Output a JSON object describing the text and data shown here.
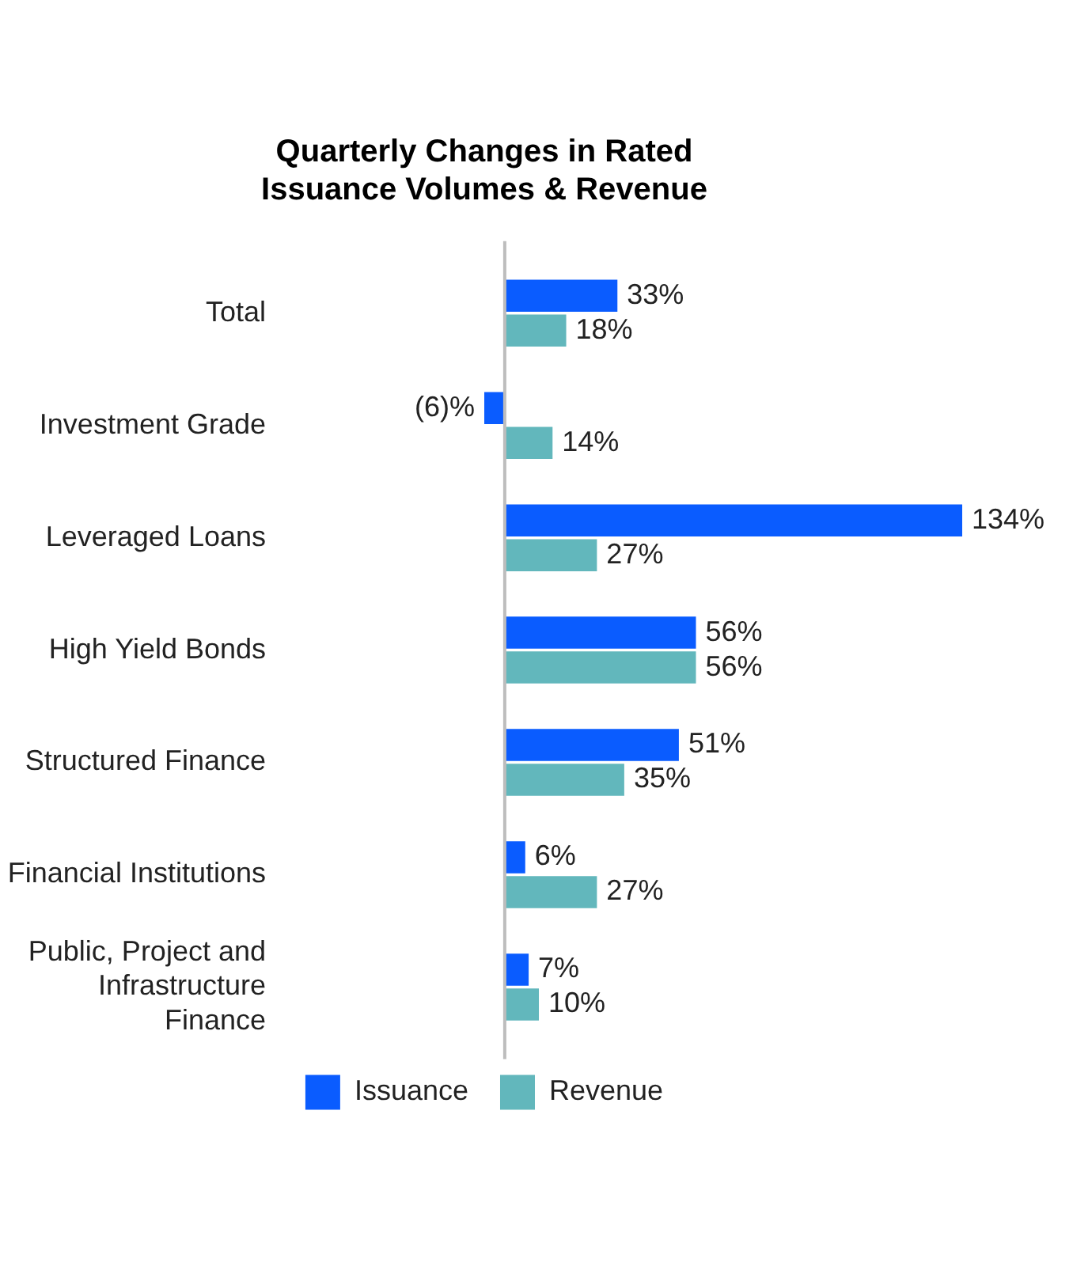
{
  "chart_data": {
    "type": "bar",
    "orientation": "horizontal",
    "title": "Quarterly Changes in Rated Issuance Volumes & Revenue",
    "categories": [
      "Total",
      "Investment Grade",
      "Leveraged Loans",
      "High Yield Bonds",
      "Structured Finance",
      "Financial Institutions",
      "Public, Project and Infrastructure Finance"
    ],
    "series": [
      {
        "name": "Issuance",
        "color": "#0a5cff",
        "values": [
          33,
          -6,
          134,
          56,
          51,
          6,
          7
        ],
        "value_labels": [
          "33%",
          "(6)%",
          "134%",
          "56%",
          "51%",
          "6%",
          "7%"
        ]
      },
      {
        "name": "Revenue",
        "color": "#62b7bc",
        "values": [
          18,
          14,
          27,
          56,
          35,
          27,
          10
        ],
        "value_labels": [
          "18%",
          "14%",
          "27%",
          "56%",
          "35%",
          "27%",
          "10%"
        ]
      }
    ],
    "legend": "bottom",
    "tick_labels": "y"
  }
}
